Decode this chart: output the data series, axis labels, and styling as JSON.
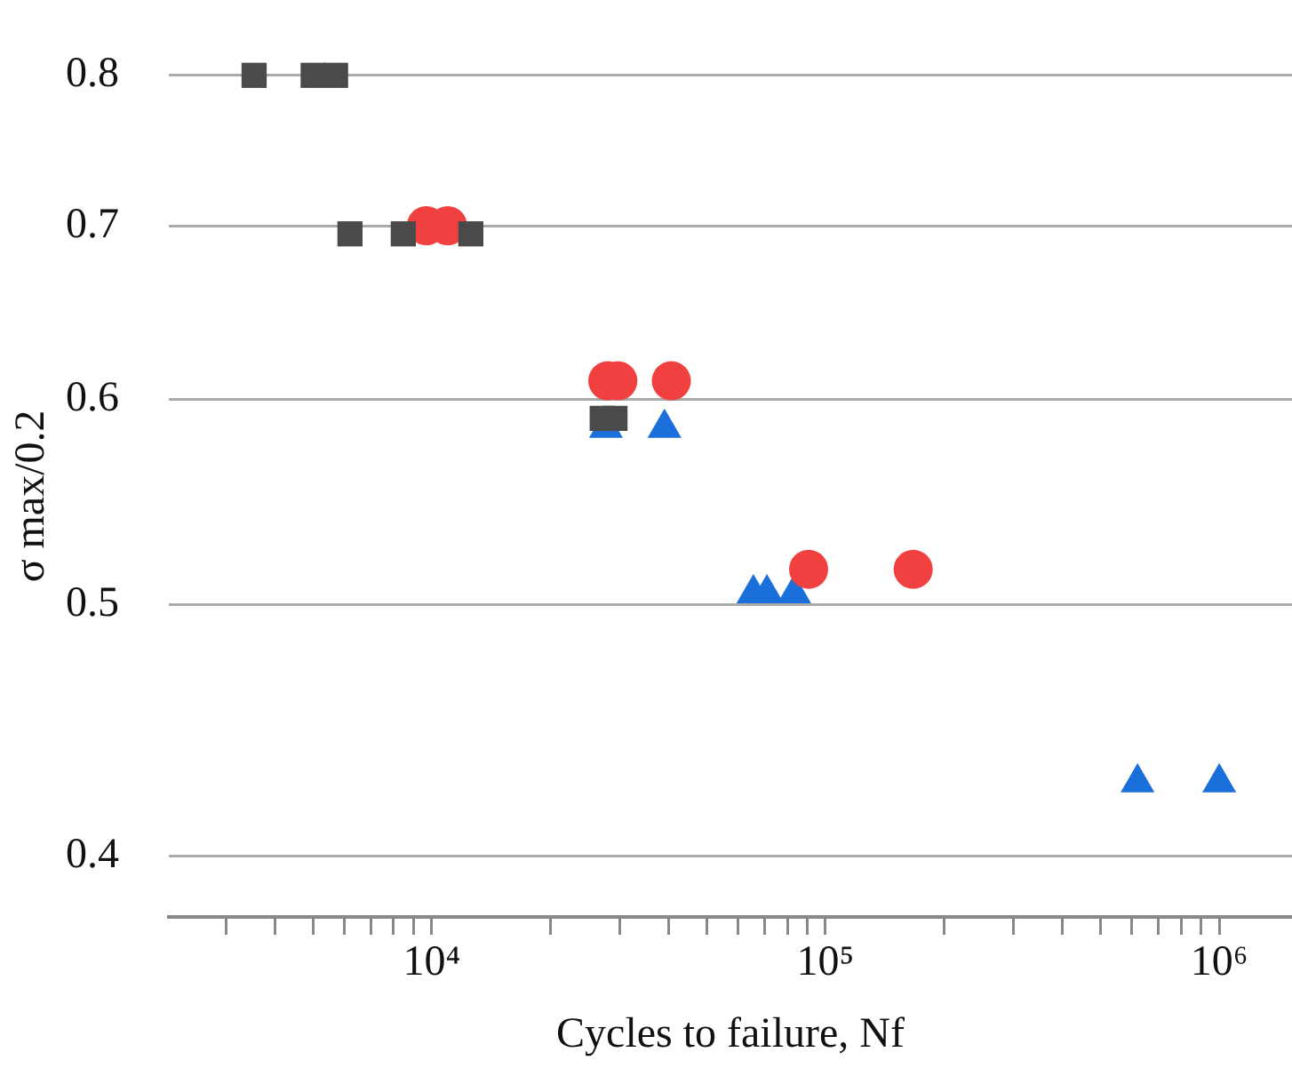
{
  "chart_data": {
    "type": "scatter",
    "xlabel": "Cycles to failure, Nf",
    "ylabel": "σ max/0.2",
    "log": "xy",
    "grid": "y",
    "legend": false,
    "xlim": [
      2150,
      1530000
    ],
    "ylim": [
      0.379,
      0.8
    ],
    "xticks": [
      {
        "value": 3000,
        "label": null
      },
      {
        "value": 4000,
        "label": null
      },
      {
        "value": 5000,
        "label": null
      },
      {
        "value": 6000,
        "label": null
      },
      {
        "value": 7000,
        "label": null
      },
      {
        "value": 8000,
        "label": null
      },
      {
        "value": 9000,
        "label": null
      },
      {
        "value": 10000,
        "label": "10⁴"
      },
      {
        "value": 20000,
        "label": null
      },
      {
        "value": 30000,
        "label": null
      },
      {
        "value": 40000,
        "label": null
      },
      {
        "value": 50000,
        "label": null
      },
      {
        "value": 60000,
        "label": null
      },
      {
        "value": 70000,
        "label": null
      },
      {
        "value": 80000,
        "label": null
      },
      {
        "value": 90000,
        "label": null
      },
      {
        "value": 100000,
        "label": "10⁵"
      },
      {
        "value": 200000,
        "label": null
      },
      {
        "value": 300000,
        "label": null
      },
      {
        "value": 400000,
        "label": null
      },
      {
        "value": 500000,
        "label": null
      },
      {
        "value": 600000,
        "label": null
      },
      {
        "value": 700000,
        "label": null
      },
      {
        "value": 800000,
        "label": null
      },
      {
        "value": 900000,
        "label": null
      },
      {
        "value": 1000000,
        "label": "10⁶"
      }
    ],
    "yticks": [
      0.4,
      0.5,
      0.6,
      0.7,
      0.8
    ],
    "series": [
      {
        "color": "#4a4a4a",
        "marker": "square",
        "x": [
          3540,
          5000,
          5700,
          6200,
          8470,
          12570,
          27100,
          29200
        ],
        "values": [
          0.8,
          0.8,
          0.8,
          0.695,
          0.695,
          0.695,
          0.59,
          0.59
        ]
      },
      {
        "color": "#f04040",
        "marker": "circle",
        "x": [
          9690,
          10980,
          28000,
          29700,
          40600,
          90600,
          167000
        ],
        "values": [
          0.7,
          0.7,
          0.61,
          0.61,
          0.61,
          0.516,
          0.516
        ]
      },
      {
        "color": "#1a6fdb",
        "marker": "triangle",
        "x": [
          27700,
          39000,
          65600,
          71000,
          83300,
          620000,
          1000000
        ],
        "values": [
          0.585,
          0.585,
          0.505,
          0.505,
          0.505,
          0.427,
          0.427
        ]
      }
    ]
  }
}
